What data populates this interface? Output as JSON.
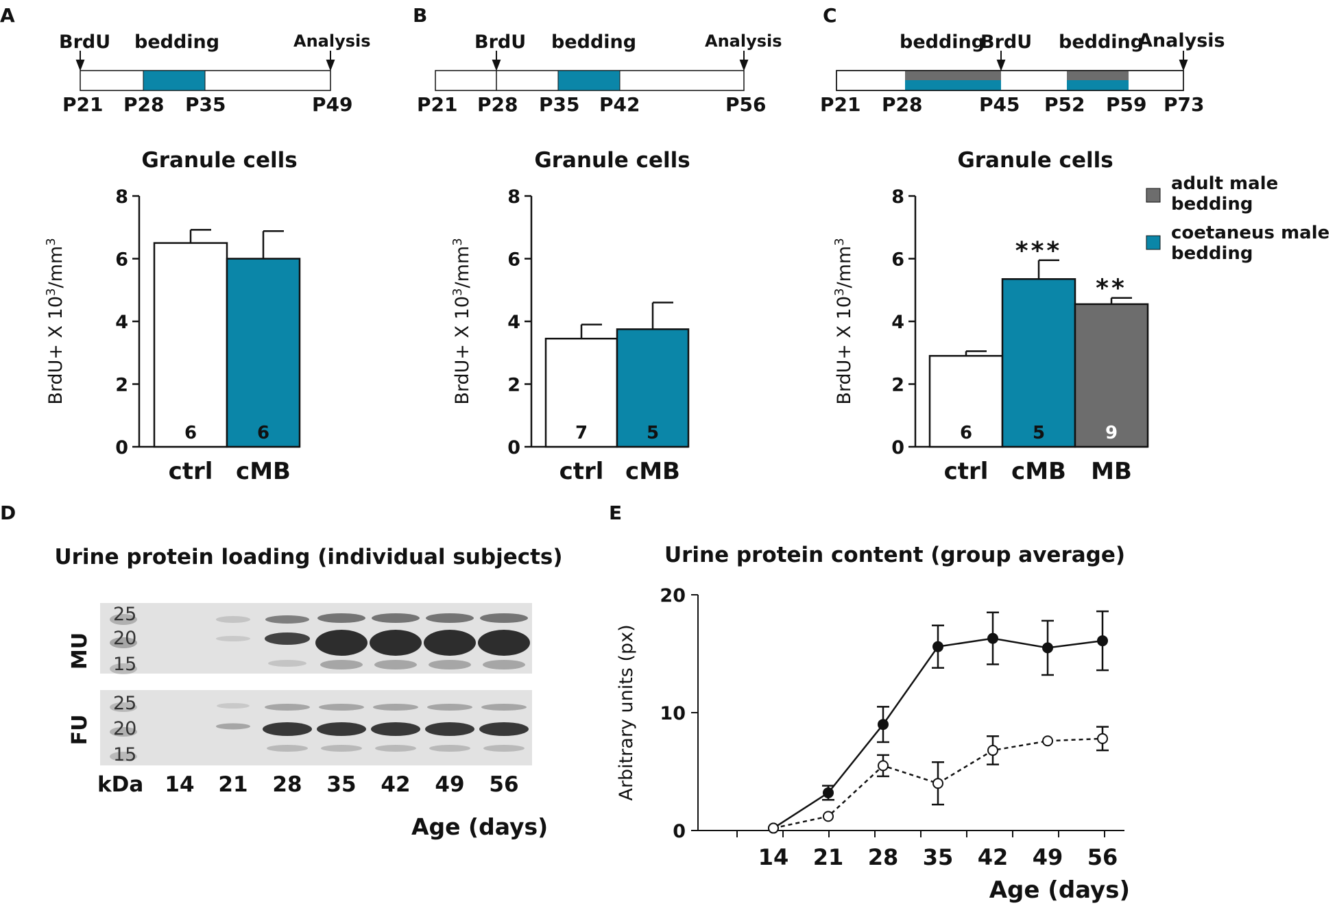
{
  "colors": {
    "teal": "#0B86A8",
    "gray": "#6D6D6D",
    "lightgray": "#8A8A8A",
    "black": "#111111",
    "white": "#ffffff"
  },
  "panels": {
    "A": {
      "letter": "A",
      "timeline": {
        "top": [
          "BrdU",
          "bedding",
          "Analysis"
        ],
        "ticks": [
          "P21",
          "P28",
          "P35",
          "P49"
        ]
      },
      "title": "Granule cells"
    },
    "B": {
      "letter": "B",
      "timeline": {
        "top": [
          "BrdU",
          "bedding",
          "Analysis"
        ],
        "ticks": [
          "P21",
          "P28",
          "P35",
          "P42",
          "P56"
        ]
      },
      "title": "Granule cells"
    },
    "C": {
      "letter": "C",
      "timeline": {
        "top": [
          "bedding",
          "BrdU",
          "bedding",
          "Analysis"
        ],
        "ticks": [
          "P21",
          "P28",
          "P45",
          "P52",
          "P59",
          "P73"
        ]
      },
      "title": "Granule cells",
      "legend": [
        {
          "label_lines": [
            "adult male",
            "bedding"
          ],
          "color": "#6D6D6D"
        },
        {
          "label_lines": [
            "coetaneus male",
            "bedding"
          ],
          "color": "#0B86A8"
        }
      ]
    },
    "D": {
      "letter": "D",
      "title": "Urine protein loading (individual subjects)",
      "row_labels": [
        "MU",
        "FU"
      ],
      "kda_markers": [
        "25",
        "20",
        "15"
      ],
      "x_label_unit": "kDa",
      "lanes": [
        "14",
        "21",
        "28",
        "35",
        "42",
        "49",
        "56"
      ],
      "xlabel": "Age (days)"
    },
    "E": {
      "letter": "E",
      "title": "Urine protein content (group average)"
    }
  },
  "chart_data": [
    {
      "panel": "A",
      "type": "bar",
      "title": "Granule cells",
      "ylabel": "BrdU+ X 10³/mm³",
      "ylabel_parts": [
        "BrdU+ X 10",
        "3",
        "/mm",
        "3"
      ],
      "ylim": [
        0,
        8
      ],
      "yticks": [
        "0",
        "2",
        "4",
        "6",
        "8"
      ],
      "categories": [
        "ctrl",
        "cMB"
      ],
      "values": [
        6.5,
        6.0
      ],
      "errors": [
        0.42,
        0.88
      ],
      "n": [
        "6",
        "6"
      ],
      "fills": [
        "white",
        "teal"
      ],
      "stars": [
        "",
        ""
      ]
    },
    {
      "panel": "B",
      "type": "bar",
      "title": "Granule cells",
      "ylabel": "BrdU+ X 10³/mm³",
      "ylabel_parts": [
        "BrdU+ X 10",
        "3",
        "/mm",
        "3"
      ],
      "ylim": [
        0,
        8
      ],
      "yticks": [
        "0",
        "2",
        "4",
        "6",
        "8"
      ],
      "categories": [
        "ctrl",
        "cMB"
      ],
      "values": [
        3.45,
        3.75
      ],
      "errors": [
        0.45,
        0.85
      ],
      "n": [
        "7",
        "5"
      ],
      "fills": [
        "white",
        "teal"
      ],
      "stars": [
        "",
        ""
      ]
    },
    {
      "panel": "C",
      "type": "bar",
      "title": "Granule cells",
      "ylabel": "BrdU+ X 10³/mm³",
      "ylabel_parts": [
        "BrdU+ X 10",
        "3",
        "/mm",
        "3"
      ],
      "ylim": [
        0,
        8
      ],
      "yticks": [
        "0",
        "2",
        "4",
        "6",
        "8"
      ],
      "categories": [
        "ctrl",
        "cMB",
        "MB"
      ],
      "values": [
        2.9,
        5.35,
        4.55
      ],
      "errors": [
        0.15,
        0.6,
        0.2
      ],
      "n": [
        "6",
        "5",
        "9"
      ],
      "fills": [
        "white",
        "teal",
        "gray"
      ],
      "stars": [
        "",
        "***",
        "**"
      ]
    },
    {
      "panel": "E",
      "type": "line",
      "title": "Urine protein content (group average)",
      "xlabel": "Age (days)",
      "ylabel": "Arbitrary units (px)",
      "ylim": [
        0,
        20
      ],
      "yticks": [
        "0",
        "10",
        "20"
      ],
      "xticks": [
        "14",
        "21",
        "28",
        "35",
        "42",
        "49",
        "56"
      ],
      "series": [
        {
          "name": "filled (solid line)",
          "style": "solid",
          "marker": "filled",
          "x": [
            14,
            21,
            28,
            35,
            42,
            49,
            56
          ],
          "values": [
            0.2,
            3.2,
            9.0,
            15.6,
            16.3,
            15.5,
            16.1
          ],
          "errors": [
            0,
            0.6,
            1.5,
            1.8,
            2.2,
            2.3,
            2.5
          ]
        },
        {
          "name": "open (dashed line)",
          "style": "dashed",
          "marker": "open",
          "x": [
            14,
            21,
            28,
            35,
            42,
            49,
            56
          ],
          "values": [
            0.2,
            1.2,
            5.5,
            4.0,
            6.8,
            7.6,
            7.8
          ],
          "errors": [
            0,
            0,
            0.9,
            1.8,
            1.2,
            0,
            1.0
          ]
        }
      ]
    }
  ]
}
